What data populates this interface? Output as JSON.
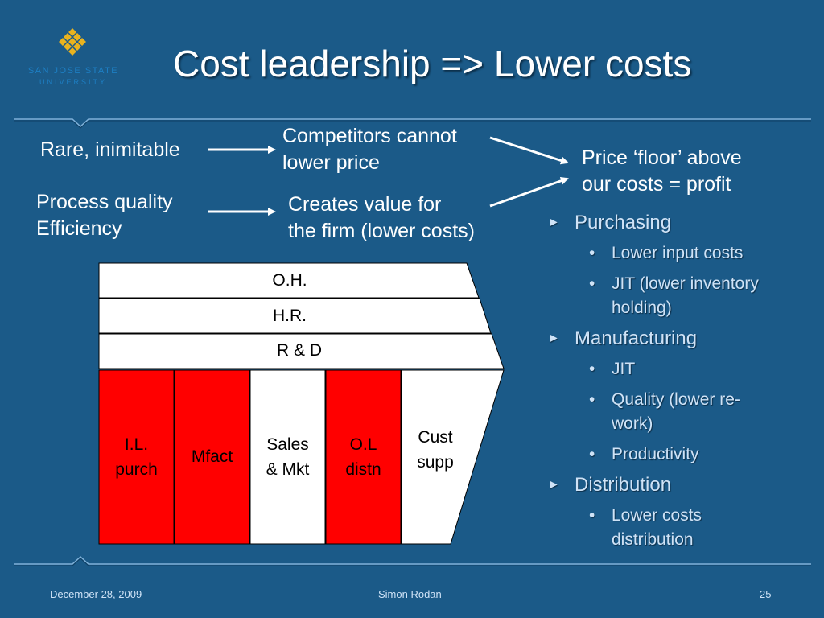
{
  "logo": {
    "line1": "SAN JOSE STATE",
    "line2": "UNIVERSITY"
  },
  "title": "Cost leadership => Lower costs",
  "relations": {
    "rare": "Rare, inimitable",
    "process_line1": "Process quality",
    "process_line2": "Efficiency",
    "competitors_line1": "Competitors cannot",
    "competitors_line2": "lower price",
    "creates_line1": "Creates value for",
    "creates_line2": "the firm (lower costs)",
    "price_line1": "Price ‘floor’ above",
    "price_line2": "our costs = profit"
  },
  "value_chain": {
    "support": [
      "O.H.",
      "H.R.",
      "R & D"
    ],
    "primary": [
      {
        "line1": "I.L.",
        "line2": "purch",
        "color": "#ff0000"
      },
      {
        "line1": "Mfact",
        "line2": "",
        "color": "#ff0000"
      },
      {
        "line1": "Sales",
        "line2": "& Mkt",
        "color": "#ffffff"
      },
      {
        "line1": "O.L",
        "line2": "distn",
        "color": "#ff0000"
      },
      {
        "line1": "Cust",
        "line2": "supp",
        "color": "#ffffff"
      }
    ]
  },
  "bullets": {
    "purchasing": "Purchasing",
    "lower_input": "Lower input costs",
    "jit_inventory_1": "JIT (lower inventory",
    "jit_inventory_2": "holding)",
    "manufacturing": "Manufacturing",
    "jit": "JIT",
    "quality_1": "Quality (lower re-",
    "quality_2": "work)",
    "productivity": "Productivity",
    "distribution": "Distribution",
    "lower_costs_1": "Lower costs",
    "lower_costs_2": "distribution"
  },
  "footer": {
    "date": "December 28, 2009",
    "author": "Simon Rodan",
    "page": "25"
  },
  "colors": {
    "background": "#1b5a88",
    "bullet_text": "#cfe3f7",
    "activity_red": "#ff0000"
  }
}
